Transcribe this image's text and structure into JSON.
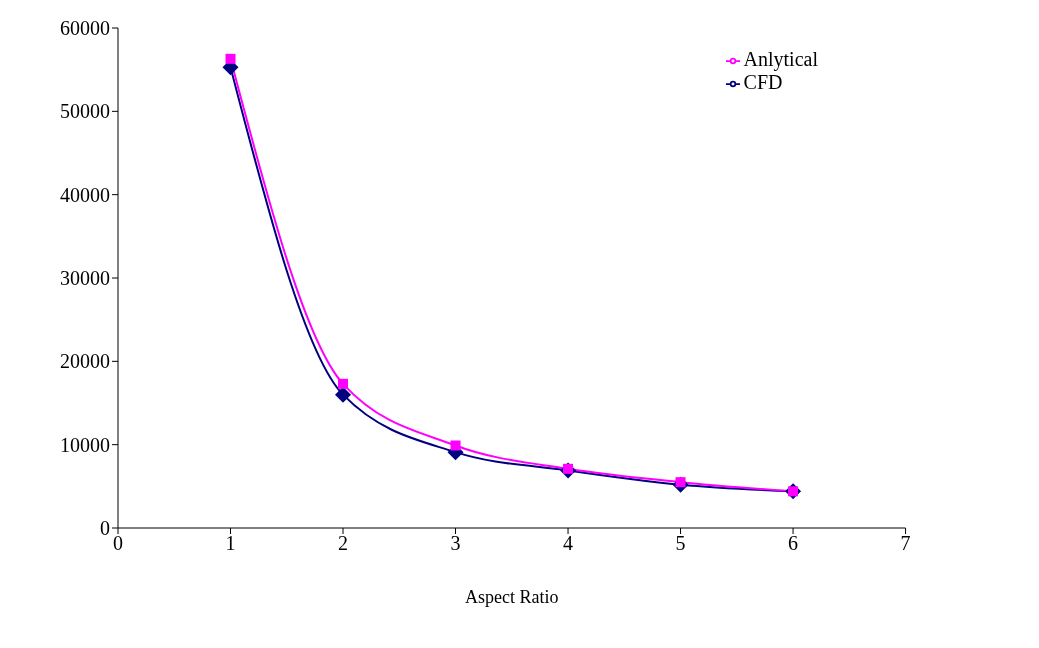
{
  "chart_data": {
    "type": "line",
    "xlabel": "Aspect Ratio",
    "x": [
      1,
      2,
      3,
      4,
      5,
      6
    ],
    "series": [
      {
        "name": "CFD",
        "color": "#000080",
        "marker": "diamond",
        "values": [
          55300,
          16000,
          9100,
          6900,
          5200,
          4400
        ]
      },
      {
        "name": "Anlytical",
        "color": "#ff00ff",
        "marker": "square",
        "values": [
          56300,
          17300,
          9900,
          7100,
          5500,
          4400
        ]
      }
    ],
    "xlim": [
      0,
      7
    ],
    "xticks": [
      0,
      1,
      2,
      3,
      4,
      5,
      6,
      7
    ],
    "ylim": [
      0,
      60000
    ],
    "yticks": [
      0,
      10000,
      20000,
      30000,
      40000,
      50000,
      60000
    ],
    "grid": false,
    "legend": "top right",
    "line_style": "solid"
  }
}
